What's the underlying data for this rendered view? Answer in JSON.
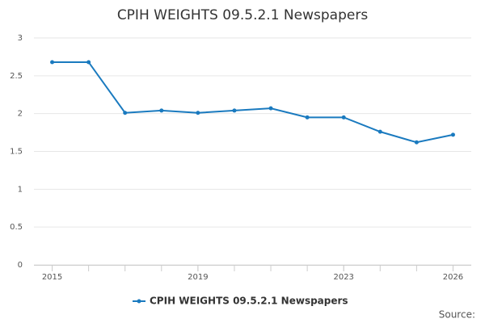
{
  "chart_data": {
    "type": "line",
    "title": "CPIH WEIGHTS 09.5.2.1 Newspapers",
    "x": [
      2015,
      2016,
      2017,
      2018,
      2019,
      2020,
      2021,
      2022,
      2023,
      2024,
      2025,
      2026
    ],
    "series": [
      {
        "name": "CPIH WEIGHTS 09.5.2.1 Newspapers",
        "color": "#1a7abf",
        "values": [
          2.68,
          2.68,
          2.01,
          2.04,
          2.01,
          2.04,
          2.07,
          1.95,
          1.95,
          1.76,
          1.62,
          1.72
        ]
      }
    ],
    "xlim": [
      2014.5,
      2026.5
    ],
    "xticks": [
      2015,
      2019,
      2023,
      2026
    ],
    "ylim": [
      0,
      3
    ],
    "yticks": [
      0,
      0.5,
      1,
      1.5,
      2,
      2.5,
      3
    ],
    "grid": true,
    "legend": "bottom",
    "source": "Source:"
  }
}
